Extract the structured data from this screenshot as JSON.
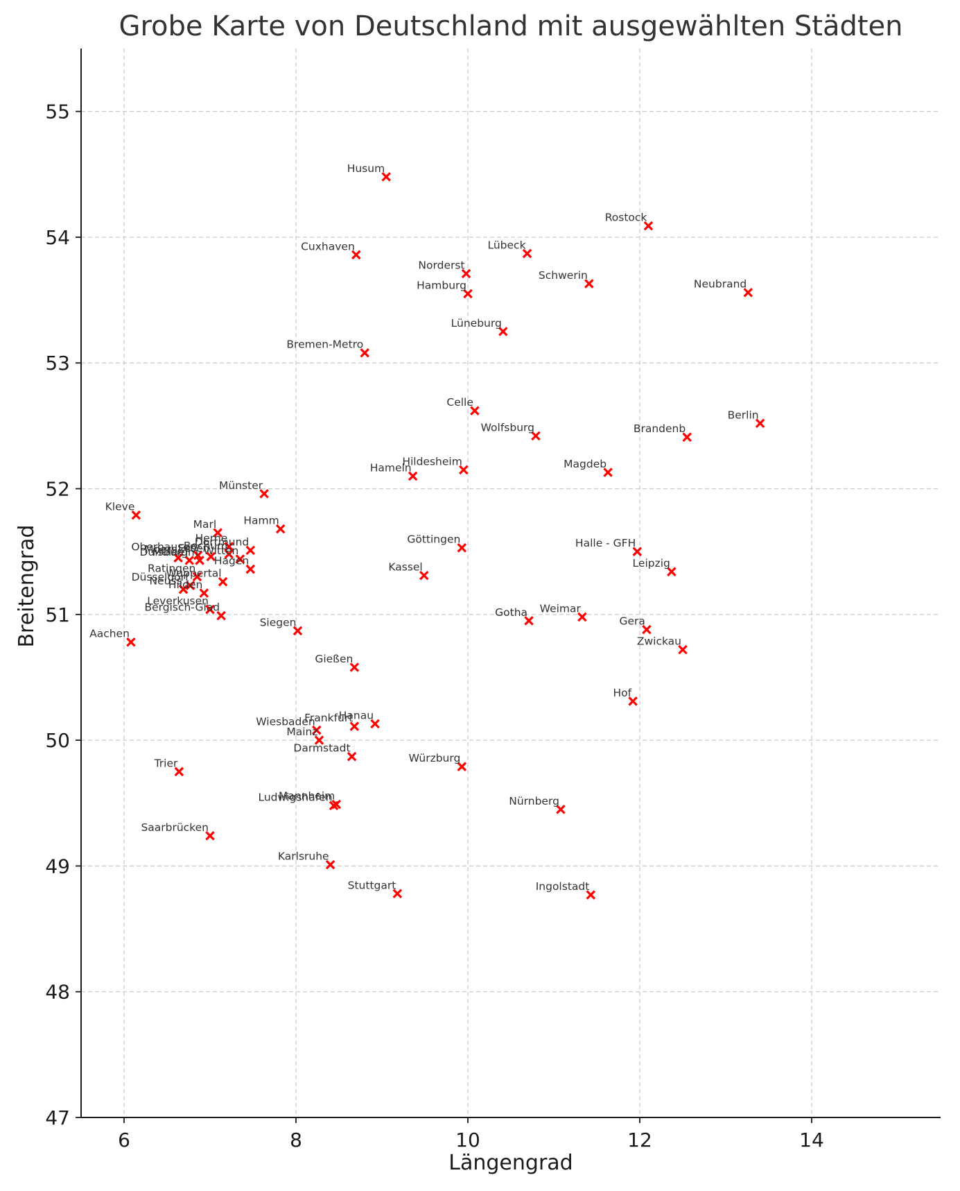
{
  "chart_data": {
    "type": "scatter",
    "title": "Grobe Karte von Deutschland mit ausgewählten Städten",
    "xlabel": "Längengrad",
    "ylabel": "Breitengrad",
    "xlim": [
      5.5,
      15.5
    ],
    "ylim": [
      47,
      55.5
    ],
    "xticks": [
      6,
      8,
      10,
      12,
      14
    ],
    "yticks": [
      47,
      48,
      49,
      50,
      51,
      52,
      53,
      54,
      55
    ],
    "grid": true,
    "marker": "x",
    "marker_color": "#ff0000",
    "points": [
      {
        "name": "Husum",
        "lon": 9.05,
        "lat": 54.48
      },
      {
        "name": "Rostock",
        "lon": 12.1,
        "lat": 54.09
      },
      {
        "name": "Cuxhaven",
        "lon": 8.7,
        "lat": 53.86
      },
      {
        "name": "Lübeck",
        "lon": 10.69,
        "lat": 53.87
      },
      {
        "name": "Norderst",
        "lon": 9.98,
        "lat": 53.71
      },
      {
        "name": "Schwerin",
        "lon": 11.41,
        "lat": 53.63
      },
      {
        "name": "Hamburg",
        "lon": 10.0,
        "lat": 53.55
      },
      {
        "name": "Neubrand",
        "lon": 13.26,
        "lat": 53.56
      },
      {
        "name": "Lüneburg",
        "lon": 10.41,
        "lat": 53.25
      },
      {
        "name": "Bremen-Metro",
        "lon": 8.8,
        "lat": 53.08
      },
      {
        "name": "Celle",
        "lon": 10.08,
        "lat": 52.62
      },
      {
        "name": "Berlin",
        "lon": 13.4,
        "lat": 52.52
      },
      {
        "name": "Wolfsburg",
        "lon": 10.79,
        "lat": 52.42
      },
      {
        "name": "Brandenb",
        "lon": 12.55,
        "lat": 52.41
      },
      {
        "name": "Hildesheim",
        "lon": 9.95,
        "lat": 52.15
      },
      {
        "name": "Hameln",
        "lon": 9.36,
        "lat": 52.1
      },
      {
        "name": "Magdeb",
        "lon": 11.63,
        "lat": 52.13
      },
      {
        "name": "Münster",
        "lon": 7.63,
        "lat": 51.96
      },
      {
        "name": "Kleve",
        "lon": 6.14,
        "lat": 51.79
      },
      {
        "name": "Hamm",
        "lon": 7.82,
        "lat": 51.68
      },
      {
        "name": "Marl",
        "lon": 7.09,
        "lat": 51.65
      },
      {
        "name": "Herne",
        "lon": 7.22,
        "lat": 51.54
      },
      {
        "name": "Dortmund",
        "lon": 7.47,
        "lat": 51.51
      },
      {
        "name": "Bochum",
        "lon": 7.22,
        "lat": 51.48
      },
      {
        "name": "Witten",
        "lon": 7.35,
        "lat": 51.44
      },
      {
        "name": "Oberhausen",
        "lon": 6.86,
        "lat": 51.47
      },
      {
        "name": "Moers",
        "lon": 6.63,
        "lat": 51.45
      },
      {
        "name": "Mülheim",
        "lon": 6.88,
        "lat": 51.43
      },
      {
        "name": "Essen",
        "lon": 7.01,
        "lat": 51.46
      },
      {
        "name": "Duisburg",
        "lon": 6.76,
        "lat": 51.43
      },
      {
        "name": "Göttingen",
        "lon": 9.93,
        "lat": 51.53
      },
      {
        "name": "Halle - GFH",
        "lon": 11.97,
        "lat": 51.5
      },
      {
        "name": "Hagen",
        "lon": 7.47,
        "lat": 51.36
      },
      {
        "name": "Leipzig",
        "lon": 12.37,
        "lat": 51.34
      },
      {
        "name": "Kassel",
        "lon": 9.49,
        "lat": 51.31
      },
      {
        "name": "Ratingen",
        "lon": 6.85,
        "lat": 51.3
      },
      {
        "name": "Wuppertal",
        "lon": 7.15,
        "lat": 51.26
      },
      {
        "name": "Düsseldorf",
        "lon": 6.77,
        "lat": 51.23
      },
      {
        "name": "Neuss",
        "lon": 6.69,
        "lat": 51.2
      },
      {
        "name": "Hilden",
        "lon": 6.93,
        "lat": 51.17
      },
      {
        "name": "Leverkusen",
        "lon": 7.0,
        "lat": 51.04
      },
      {
        "name": "Bergisch-Glad",
        "lon": 7.13,
        "lat": 50.99
      },
      {
        "name": "Weimar",
        "lon": 11.33,
        "lat": 50.98
      },
      {
        "name": "Gotha",
        "lon": 10.71,
        "lat": 50.95
      },
      {
        "name": "Siegen",
        "lon": 8.02,
        "lat": 50.87
      },
      {
        "name": "Gera",
        "lon": 12.08,
        "lat": 50.88
      },
      {
        "name": "Aachen",
        "lon": 6.08,
        "lat": 50.78
      },
      {
        "name": "Zwickau",
        "lon": 12.5,
        "lat": 50.72
      },
      {
        "name": "Gießen",
        "lon": 8.68,
        "lat": 50.58
      },
      {
        "name": "Hof",
        "lon": 11.92,
        "lat": 50.31
      },
      {
        "name": "Hanau",
        "lon": 8.92,
        "lat": 50.13
      },
      {
        "name": "Frankfurt",
        "lon": 8.68,
        "lat": 50.11
      },
      {
        "name": "Wiesbaden",
        "lon": 8.24,
        "lat": 50.08
      },
      {
        "name": "Mainz",
        "lon": 8.27,
        "lat": 50.0
      },
      {
        "name": "Darmstadt",
        "lon": 8.65,
        "lat": 49.87
      },
      {
        "name": "Würzburg",
        "lon": 9.93,
        "lat": 49.79
      },
      {
        "name": "Trier",
        "lon": 6.64,
        "lat": 49.75
      },
      {
        "name": "Mannheim",
        "lon": 8.47,
        "lat": 49.49
      },
      {
        "name": "Ludwigshafen",
        "lon": 8.44,
        "lat": 49.48
      },
      {
        "name": "Nürnberg",
        "lon": 11.08,
        "lat": 49.45
      },
      {
        "name": "Saarbrücken",
        "lon": 7.0,
        "lat": 49.24
      },
      {
        "name": "Karlsruhe",
        "lon": 8.4,
        "lat": 49.01
      },
      {
        "name": "Stuttgart",
        "lon": 9.18,
        "lat": 48.78
      },
      {
        "name": "Ingolstadt",
        "lon": 11.43,
        "lat": 48.77
      }
    ]
  }
}
